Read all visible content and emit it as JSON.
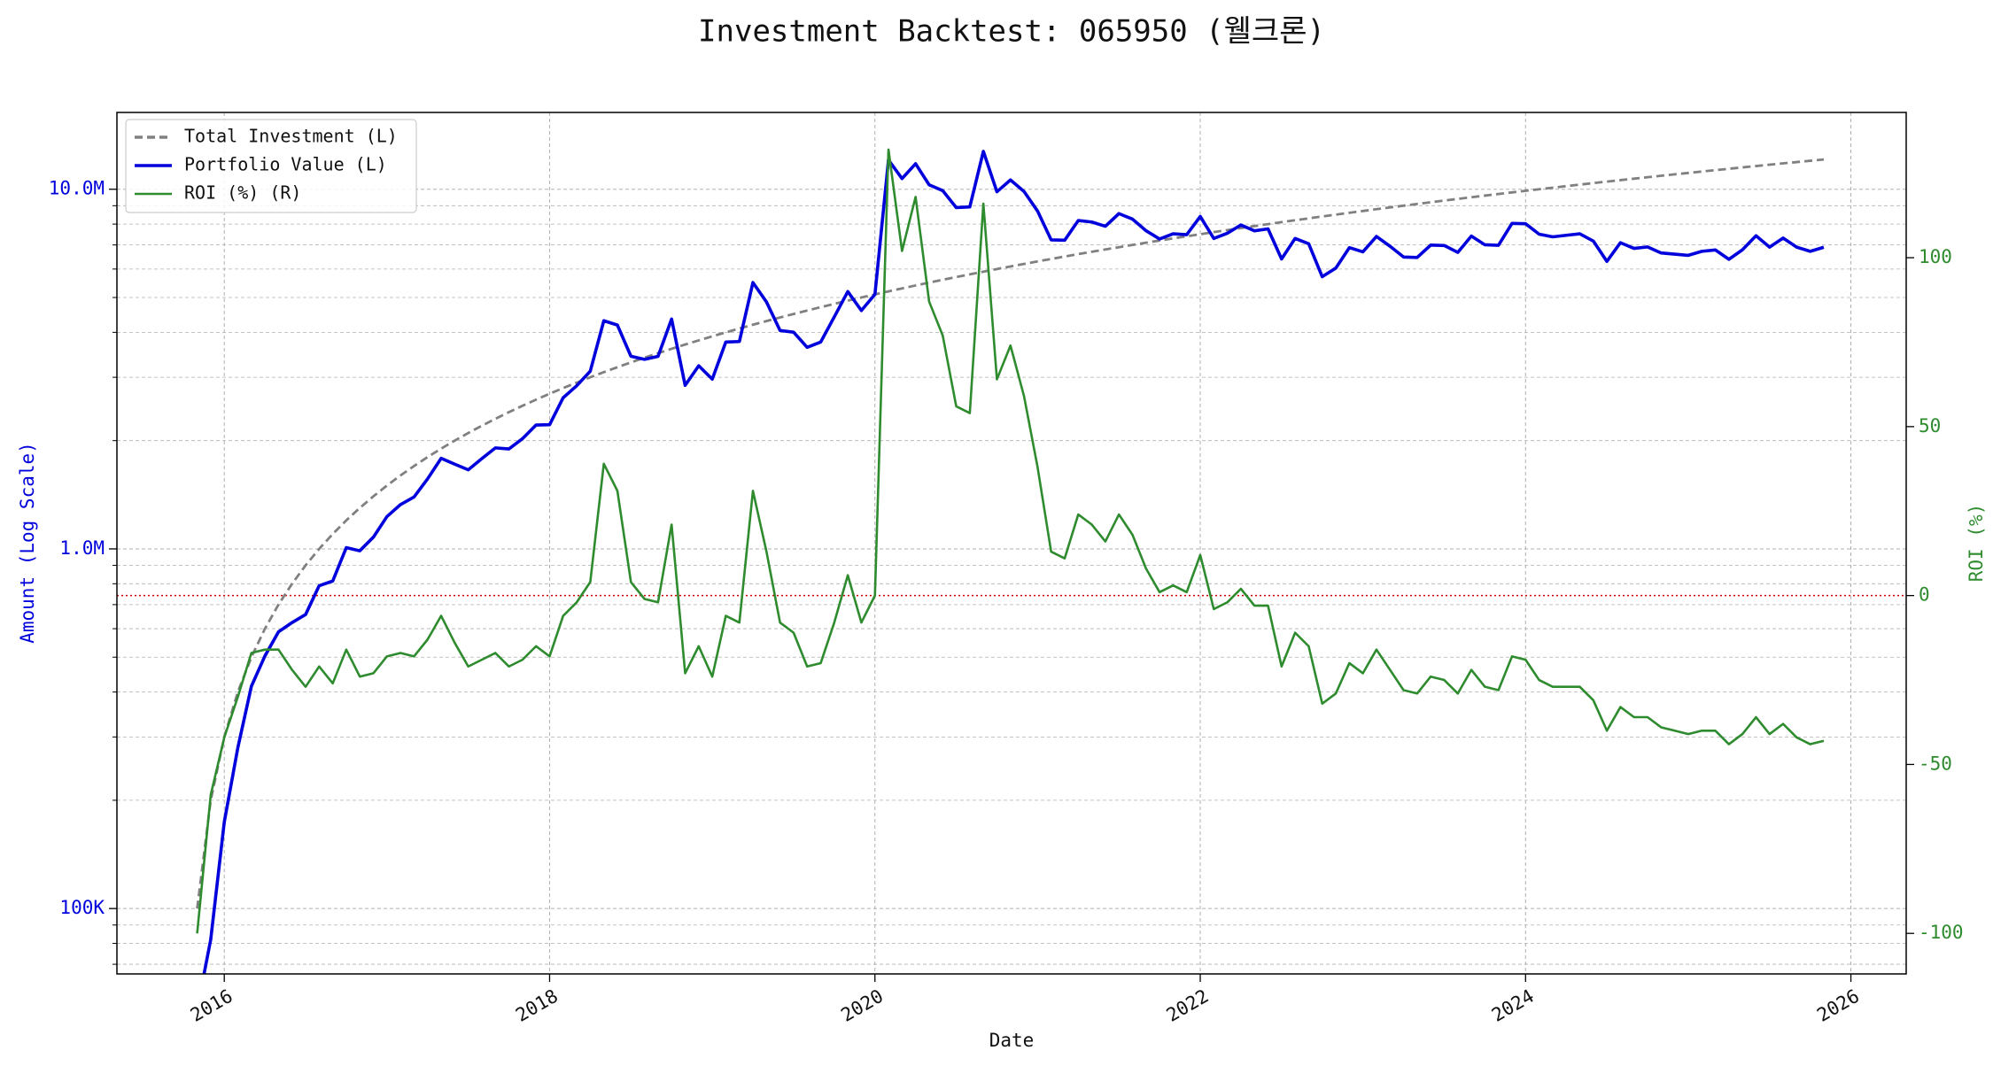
{
  "chart_data": {
    "type": "line",
    "title": "Investment Backtest: 065950 (웰크론)",
    "x_label": "Date",
    "y_label": "Amount (Log Scale)",
    "y2_label": "ROI (%)",
    "y_log": true,
    "grid": true,
    "legend": "upper left",
    "y_color": "#0000dd",
    "y2_color": "#2e8b2e",
    "y2_refline": {
      "value": 0,
      "color": "#cc0000"
    },
    "xlim": [
      2015.34,
      2026.34
    ],
    "xticks": [
      2016,
      2018,
      2020,
      2022,
      2024,
      2026
    ],
    "ylim": [
      65800,
      16350000
    ],
    "yticks": [
      {
        "value": 100000,
        "label": "100K"
      },
      {
        "value": 1000000,
        "label": "1.0M"
      },
      {
        "value": 10000000,
        "label": "10.0M"
      }
    ],
    "yminor_ticks": [
      70000,
      80000,
      90000,
      200000,
      300000,
      400000,
      500000,
      600000,
      700000,
      800000,
      900000,
      2000000,
      3000000,
      4000000,
      5000000,
      6000000,
      7000000,
      8000000,
      9000000
    ],
    "y2lim": [
      -112,
      143
    ],
    "y2ticks": [
      -100,
      -50,
      0,
      50,
      100
    ],
    "x": [
      "2015-10",
      "2015-11",
      "2015-12",
      "2016-01",
      "2016-02",
      "2016-03",
      "2016-04",
      "2016-05",
      "2016-06",
      "2016-07",
      "2016-08",
      "2016-09",
      "2016-10",
      "2016-11",
      "2016-12",
      "2017-01",
      "2017-02",
      "2017-03",
      "2017-04",
      "2017-05",
      "2017-06",
      "2017-07",
      "2017-08",
      "2017-09",
      "2017-10",
      "2017-11",
      "2017-12",
      "2018-01",
      "2018-02",
      "2018-03",
      "2018-04",
      "2018-05",
      "2018-06",
      "2018-07",
      "2018-08",
      "2018-09",
      "2018-10",
      "2018-11",
      "2018-12",
      "2019-01",
      "2019-02",
      "2019-03",
      "2019-04",
      "2019-05",
      "2019-06",
      "2019-07",
      "2019-08",
      "2019-09",
      "2019-10",
      "2019-11",
      "2019-12",
      "2020-01",
      "2020-02",
      "2020-03",
      "2020-04",
      "2020-05",
      "2020-06",
      "2020-07",
      "2020-08",
      "2020-09",
      "2020-10",
      "2020-11",
      "2020-12",
      "2021-01",
      "2021-02",
      "2021-03",
      "2021-04",
      "2021-05",
      "2021-06",
      "2021-07",
      "2021-08",
      "2021-09",
      "2021-10",
      "2021-11",
      "2021-12",
      "2022-01",
      "2022-02",
      "2022-03",
      "2022-04",
      "2022-05",
      "2022-06",
      "2022-07",
      "2022-08",
      "2022-09",
      "2022-10",
      "2022-11",
      "2022-12",
      "2023-01",
      "2023-02",
      "2023-03",
      "2023-04",
      "2023-05",
      "2023-06",
      "2023-07",
      "2023-08",
      "2023-09",
      "2023-10",
      "2023-11",
      "2023-12",
      "2024-01",
      "2024-02",
      "2024-03",
      "2024-04",
      "2024-05",
      "2024-06",
      "2024-07",
      "2024-08",
      "2024-09",
      "2024-10",
      "2024-11",
      "2024-12",
      "2025-01",
      "2025-02",
      "2025-03",
      "2025-04",
      "2025-05",
      "2025-06",
      "2025-07",
      "2025-08",
      "2025-09",
      "2025-10"
    ],
    "series": [
      {
        "name": "Total Investment (L)",
        "color": "#808080",
        "style": "dashed",
        "axis": "y",
        "values": [
          100000,
          200000,
          300000,
          400000,
          500000,
          600000,
          700000,
          800000,
          900000,
          1000000,
          1100000,
          1200000,
          1300000,
          1400000,
          1500000,
          1600000,
          1700000,
          1800000,
          1900000,
          2000000,
          2100000,
          2200000,
          2300000,
          2400000,
          2500000,
          2600000,
          2700000,
          2800000,
          2900000,
          3000000,
          3100000,
          3200000,
          3300000,
          3400000,
          3500000,
          3600000,
          3700000,
          3800000,
          3900000,
          4000000,
          4100000,
          4200000,
          4300000,
          4400000,
          4500000,
          4600000,
          4700000,
          4800000,
          4900000,
          5000000,
          5100000,
          5200000,
          5300000,
          5400000,
          5500000,
          5600000,
          5700000,
          5800000,
          5900000,
          6000000,
          6100000,
          6200000,
          6300000,
          6400000,
          6500000,
          6600000,
          6700000,
          6800000,
          6900000,
          7000000,
          7100000,
          7200000,
          7300000,
          7400000,
          7500000,
          7600000,
          7700000,
          7800000,
          7900000,
          8000000,
          8100000,
          8200000,
          8300000,
          8400000,
          8500000,
          8600000,
          8700000,
          8800000,
          8900000,
          9000000,
          9100000,
          9200000,
          9300000,
          9400000,
          9500000,
          9600000,
          9700000,
          9800000,
          9900000,
          10000000,
          10100000,
          10200000,
          10300000,
          10400000,
          10500000,
          10600000,
          10700000,
          10800000,
          10900000,
          11000000,
          11100000,
          11200000,
          11300000,
          11400000,
          11500000,
          11600000,
          11700000,
          11800000,
          11900000,
          12000000,
          12100000
        ]
      },
      {
        "name": "Portfolio Value (L)",
        "color": "#0000dd",
        "style": "solid",
        "axis": "y",
        "values": [
          0,
          82000,
          174000,
          280000,
          415000,
          504000,
          588000,
          624000,
          657000,
          790000,
          814000,
          1008000,
          988000,
          1078000,
          1230000,
          1328000,
          1394000,
          1566000,
          1786000,
          1720000,
          1659000,
          1782000,
          1909000,
          1896000,
          2025000,
          2210000,
          2214000,
          2632000,
          2842000,
          3120000,
          4309000,
          4192000,
          3432000,
          3366000,
          3430000,
          4356000,
          2849000,
          3230000,
          2964000,
          3760000,
          3772000,
          5502000,
          4859000,
          4048000,
          4005000,
          3634000,
          3760000,
          4416000,
          5194000,
          4600000,
          5100000,
          12064000,
          10706000,
          11772000,
          10285000,
          9912000,
          8892000,
          8932000,
          12744000,
          9840000,
          10614000,
          9858000,
          8694000,
          7232000,
          7215000,
          8184000,
          8107000,
          7888000,
          8556000,
          8260000,
          7668000,
          7272000,
          7519000,
          7474000,
          8400000,
          7296000,
          7546000,
          7956000,
          7663000,
          7760000,
          6399000,
          7298000,
          7055000,
          5712000,
          6035000,
          6880000,
          6699000,
          7392000,
          6942000,
          6480000,
          6461000,
          6992000,
          6975000,
          6674000,
          7410000,
          7008000,
          6984000,
          8036000,
          8019000,
          7500000,
          7373000,
          7446000,
          7519000,
          7176000,
          6300000,
          7102000,
          6848000,
          6912000,
          6649000,
          6600000,
          6549000,
          6720000,
          6780000,
          6384000,
          6785000,
          7424000,
          6903000,
          7316000,
          6902000,
          6720000,
          6897000
        ]
      },
      {
        "name": "ROI (%) (R)",
        "color": "#2e8b2e",
        "style": "solid",
        "axis": "y2",
        "values": [
          -100,
          -59,
          -42,
          -30,
          -17,
          -16,
          -16,
          -22,
          -27,
          -21,
          -26,
          -16,
          -24,
          -23,
          -18,
          -17,
          -18,
          -13,
          -6,
          -14,
          -21,
          -19,
          -17,
          -21,
          -19,
          -15,
          -18,
          -6,
          -2,
          4,
          39,
          31,
          4,
          -1,
          -2,
          21,
          -23,
          -15,
          -24,
          -6,
          -8,
          31,
          13,
          -8,
          -11,
          -21,
          -20,
          -8,
          6,
          -8,
          0,
          132,
          102,
          118,
          87,
          77,
          56,
          54,
          116,
          64,
          74,
          59,
          38,
          13,
          11,
          24,
          21,
          16,
          24,
          18,
          8,
          1,
          3,
          1,
          12,
          -4,
          -2,
          2,
          -3,
          -3,
          -21,
          -11,
          -15,
          -32,
          -29,
          -20,
          -23,
          -16,
          -22,
          -28,
          -29,
          -24,
          -25,
          -29,
          -22,
          -27,
          -28,
          -18,
          -19,
          -25,
          -27,
          -27,
          -27,
          -31,
          -40,
          -33,
          -36,
          -36,
          -39,
          -40,
          -41,
          -40,
          -40,
          -44,
          -41,
          -36,
          -41,
          -38,
          -42,
          -44,
          -43
        ]
      }
    ]
  }
}
